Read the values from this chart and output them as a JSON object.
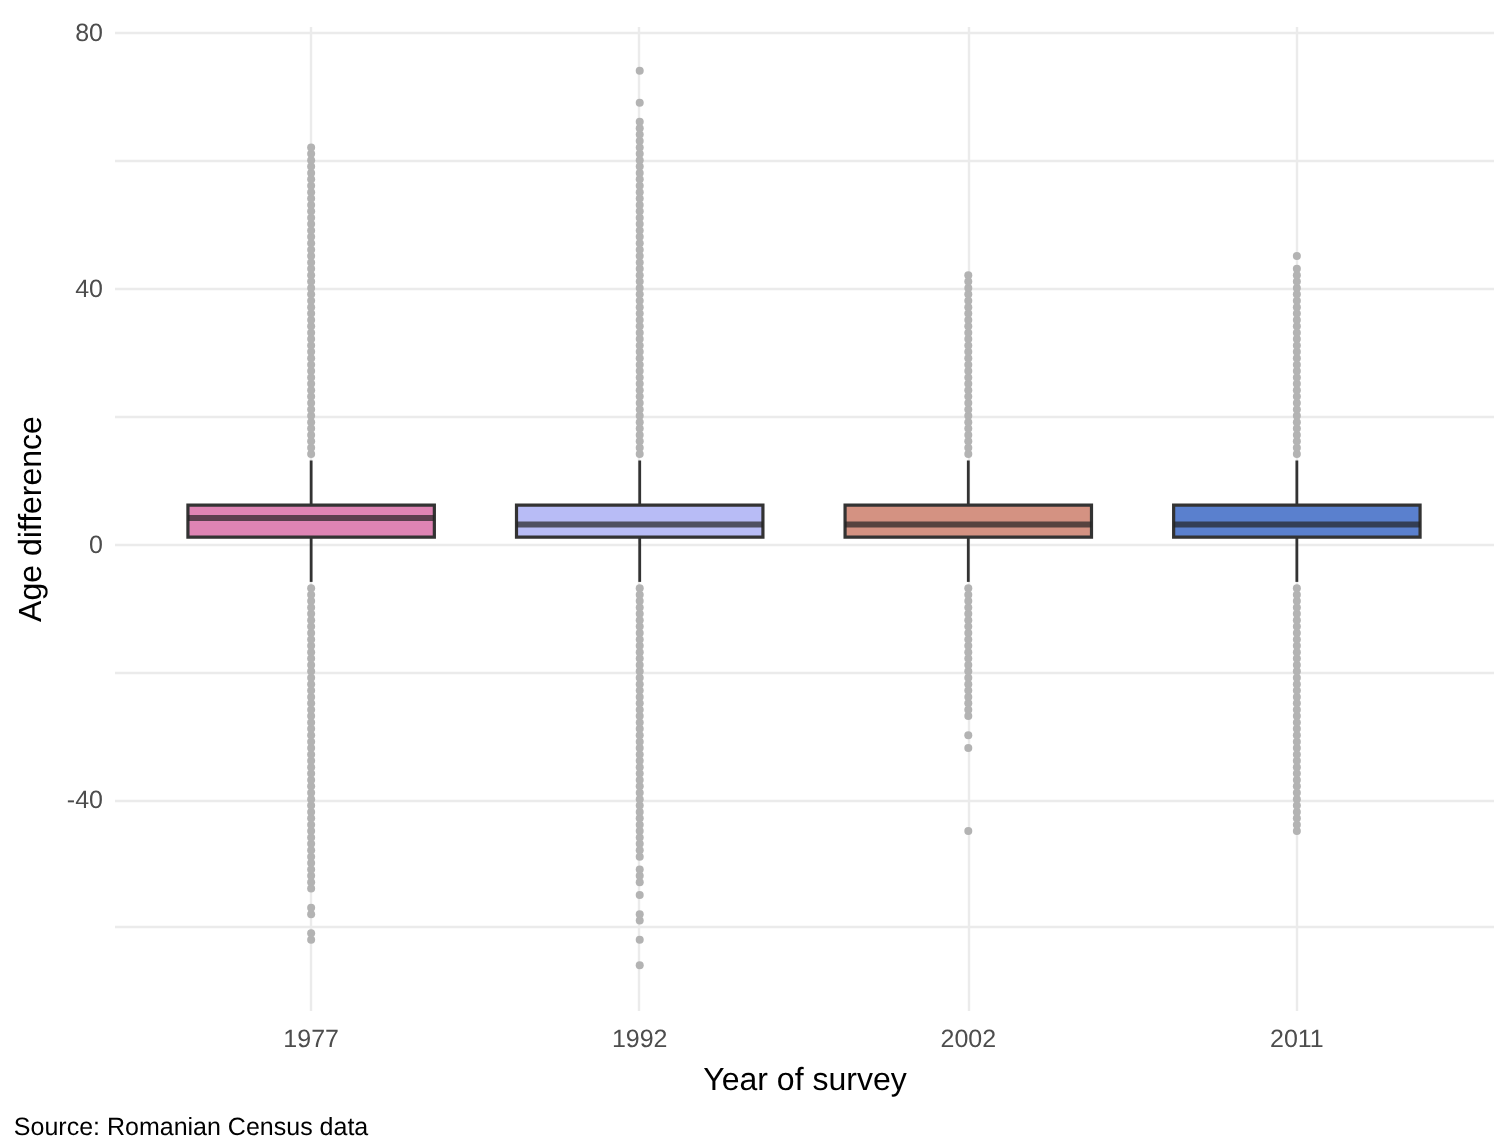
{
  "chart_data": {
    "type": "box",
    "xlabel": "Year of survey",
    "ylabel": "Age difference",
    "annotations": [
      "Source: Romanian Census data"
    ],
    "categories": [
      "1977",
      "1992",
      "2002",
      "2011"
    ],
    "colors": [
      "#de84b4",
      "#b8bcf6",
      "#d49282",
      "#5a80ce"
    ],
    "ylim": [
      -73,
      81
    ],
    "yticks": [
      {
        "value": -60,
        "label": null
      },
      -40,
      {
        "value": -20,
        "label": null
      },
      0,
      {
        "value": 20,
        "label": null
      },
      40,
      {
        "value": 60,
        "label": null
      },
      80
    ],
    "grid": true,
    "boxes": [
      {
        "low": -6,
        "q1": 1,
        "median": 4,
        "q3": 6,
        "high": 13,
        "outliers": [
          -62,
          -61,
          -58,
          -57,
          -54,
          -53,
          -52,
          -51,
          -50,
          -49,
          -48,
          -47,
          -46,
          -45,
          -44,
          -43,
          -42,
          -41,
          -40,
          -39,
          -38,
          -37,
          -36,
          -35,
          -34,
          -33,
          -32,
          -31,
          -30,
          -29,
          -28,
          -27,
          -26,
          -25,
          -24,
          -23,
          -22,
          -21,
          -20,
          -19,
          -18,
          -17,
          -16,
          -15,
          -14,
          -13,
          -12,
          -11,
          -10,
          -9,
          -8,
          -7,
          14,
          15,
          16,
          17,
          18,
          19,
          20,
          21,
          22,
          23,
          24,
          25,
          26,
          27,
          28,
          29,
          30,
          31,
          32,
          33,
          34,
          35,
          36,
          37,
          38,
          39,
          40,
          41,
          42,
          43,
          44,
          45,
          46,
          47,
          48,
          49,
          50,
          51,
          52,
          53,
          54,
          55,
          56,
          57,
          58,
          59,
          60,
          61,
          62
        ]
      },
      {
        "low": -6,
        "q1": 1,
        "median": 3,
        "q3": 6,
        "high": 13,
        "outliers": [
          -66,
          -62,
          -59,
          -58,
          -55,
          -53,
          -52,
          -51,
          -49,
          -48,
          -47,
          -46,
          -45,
          -44,
          -43,
          -42,
          -41,
          -40,
          -39,
          -38,
          -37,
          -36,
          -35,
          -34,
          -33,
          -32,
          -31,
          -30,
          -29,
          -28,
          -27,
          -26,
          -25,
          -24,
          -23,
          -22,
          -21,
          -20,
          -19,
          -18,
          -17,
          -16,
          -15,
          -14,
          -13,
          -12,
          -11,
          -10,
          -9,
          -8,
          -7,
          14,
          15,
          16,
          17,
          18,
          19,
          20,
          21,
          22,
          23,
          24,
          25,
          26,
          27,
          28,
          29,
          30,
          31,
          32,
          33,
          34,
          35,
          36,
          37,
          38,
          39,
          40,
          41,
          42,
          43,
          44,
          45,
          46,
          47,
          48,
          49,
          50,
          51,
          52,
          53,
          54,
          55,
          56,
          57,
          58,
          59,
          60,
          61,
          62,
          63,
          64,
          65,
          66,
          69,
          74
        ]
      },
      {
        "low": -6,
        "q1": 1,
        "median": 3,
        "q3": 6,
        "high": 13,
        "outliers": [
          -45,
          -32,
          -30,
          -27,
          -26,
          -25,
          -24,
          -23,
          -22,
          -21,
          -20,
          -19,
          -18,
          -17,
          -16,
          -15,
          -14,
          -13,
          -12,
          -11,
          -10,
          -9,
          -8,
          -7,
          14,
          15,
          16,
          17,
          18,
          19,
          20,
          21,
          22,
          23,
          24,
          25,
          26,
          27,
          28,
          29,
          30,
          31,
          32,
          33,
          34,
          35,
          36,
          37,
          38,
          39,
          40,
          41,
          42
        ]
      },
      {
        "low": -6,
        "q1": 1,
        "median": 3,
        "q3": 6,
        "high": 13,
        "outliers": [
          -45,
          -44,
          -43,
          -42,
          -41,
          -40,
          -39,
          -38,
          -37,
          -36,
          -35,
          -34,
          -33,
          -32,
          -31,
          -30,
          -29,
          -28,
          -27,
          -26,
          -25,
          -24,
          -23,
          -22,
          -21,
          -20,
          -19,
          -18,
          -17,
          -16,
          -15,
          -14,
          -13,
          -12,
          -11,
          -10,
          -9,
          -8,
          -7,
          14,
          15,
          16,
          17,
          18,
          19,
          20,
          21,
          22,
          23,
          24,
          25,
          26,
          27,
          28,
          29,
          30,
          31,
          32,
          33,
          34,
          35,
          36,
          37,
          38,
          39,
          40,
          41,
          42,
          43,
          45
        ]
      }
    ]
  }
}
